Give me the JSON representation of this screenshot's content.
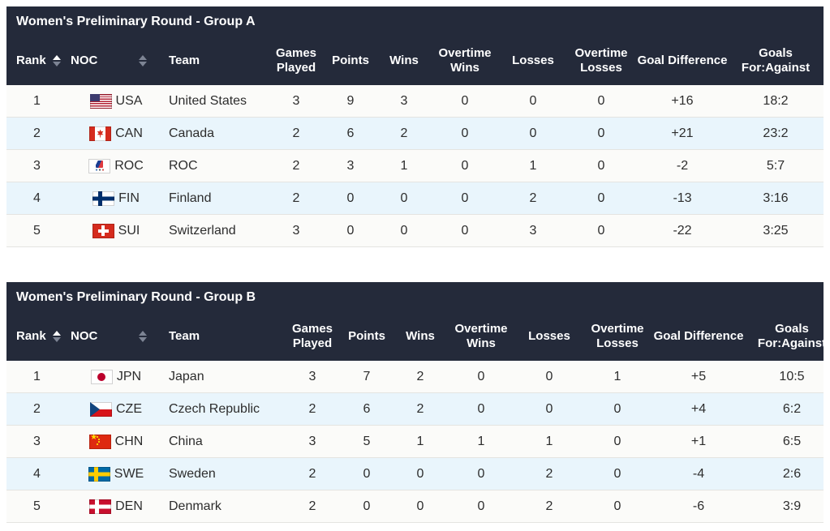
{
  "colors": {
    "header_bg": "#242A3A",
    "header_text": "#FFFFFF",
    "row_highlight": "#E9F5FC",
    "row_base": "#FBFBF9",
    "body_text": "#2D2D2D",
    "sort_active": "#FFFFFF",
    "sort_inactive": "#7D8494"
  },
  "columns": [
    {
      "key": "rank",
      "label": "Rank",
      "sortable": true,
      "sort": "asc"
    },
    {
      "key": "noc",
      "label": "NOC",
      "sortable": true,
      "sort": "none"
    },
    {
      "key": "team",
      "label": "Team",
      "sortable": false,
      "sort": "none"
    },
    {
      "key": "gp",
      "label": "Games Played",
      "sortable": false,
      "sort": "none"
    },
    {
      "key": "points",
      "label": "Points",
      "sortable": false,
      "sort": "none"
    },
    {
      "key": "wins",
      "label": "Wins",
      "sortable": false,
      "sort": "none"
    },
    {
      "key": "otw",
      "label": "Overtime Wins",
      "sortable": false,
      "sort": "none"
    },
    {
      "key": "losses",
      "label": "Losses",
      "sortable": false,
      "sort": "none"
    },
    {
      "key": "otl",
      "label": "Overtime Losses",
      "sortable": false,
      "sort": "none"
    },
    {
      "key": "gd",
      "label": "Goal Difference",
      "sortable": false,
      "sort": "none"
    },
    {
      "key": "gfa",
      "label": "Goals For:Against",
      "sortable": false,
      "sort": "none"
    }
  ],
  "tables": [
    {
      "id": "group-a",
      "title": "Women's Preliminary Round - Group A",
      "rows": [
        {
          "rank": "1",
          "flag": "usa",
          "noc": "USA",
          "team": "United States",
          "gp": "3",
          "points": "9",
          "wins": "3",
          "otw": "0",
          "losses": "0",
          "otl": "0",
          "gd": "+16",
          "gfa": "18:2"
        },
        {
          "rank": "2",
          "flag": "can",
          "noc": "CAN",
          "team": "Canada",
          "gp": "2",
          "points": "6",
          "wins": "2",
          "otw": "0",
          "losses": "0",
          "otl": "0",
          "gd": "+21",
          "gfa": "23:2"
        },
        {
          "rank": "3",
          "flag": "roc",
          "noc": "ROC",
          "team": "ROC",
          "gp": "2",
          "points": "3",
          "wins": "1",
          "otw": "0",
          "losses": "1",
          "otl": "0",
          "gd": "-2",
          "gfa": "5:7"
        },
        {
          "rank": "4",
          "flag": "fin",
          "noc": "FIN",
          "team": "Finland",
          "gp": "2",
          "points": "0",
          "wins": "0",
          "otw": "0",
          "losses": "2",
          "otl": "0",
          "gd": "-13",
          "gfa": "3:16"
        },
        {
          "rank": "5",
          "flag": "sui",
          "noc": "SUI",
          "team": "Switzerland",
          "gp": "3",
          "points": "0",
          "wins": "0",
          "otw": "0",
          "losses": "3",
          "otl": "0",
          "gd": "-22",
          "gfa": "3:25"
        }
      ]
    },
    {
      "id": "group-b",
      "title": "Women's Preliminary Round - Group B",
      "rows": [
        {
          "rank": "1",
          "flag": "jpn",
          "noc": "JPN",
          "team": "Japan",
          "gp": "3",
          "points": "7",
          "wins": "2",
          "otw": "0",
          "losses": "0",
          "otl": "1",
          "gd": "+5",
          "gfa": "10:5"
        },
        {
          "rank": "2",
          "flag": "cze",
          "noc": "CZE",
          "team": "Czech Republic",
          "gp": "2",
          "points": "6",
          "wins": "2",
          "otw": "0",
          "losses": "0",
          "otl": "0",
          "gd": "+4",
          "gfa": "6:2"
        },
        {
          "rank": "3",
          "flag": "chn",
          "noc": "CHN",
          "team": "China",
          "gp": "3",
          "points": "5",
          "wins": "1",
          "otw": "1",
          "losses": "1",
          "otl": "0",
          "gd": "+1",
          "gfa": "6:5"
        },
        {
          "rank": "4",
          "flag": "swe",
          "noc": "SWE",
          "team": "Sweden",
          "gp": "2",
          "points": "0",
          "wins": "0",
          "otw": "0",
          "losses": "2",
          "otl": "0",
          "gd": "-4",
          "gfa": "2:6"
        },
        {
          "rank": "5",
          "flag": "den",
          "noc": "DEN",
          "team": "Denmark",
          "gp": "2",
          "points": "0",
          "wins": "0",
          "otw": "0",
          "losses": "2",
          "otl": "0",
          "gd": "-6",
          "gfa": "3:9"
        }
      ]
    }
  ]
}
